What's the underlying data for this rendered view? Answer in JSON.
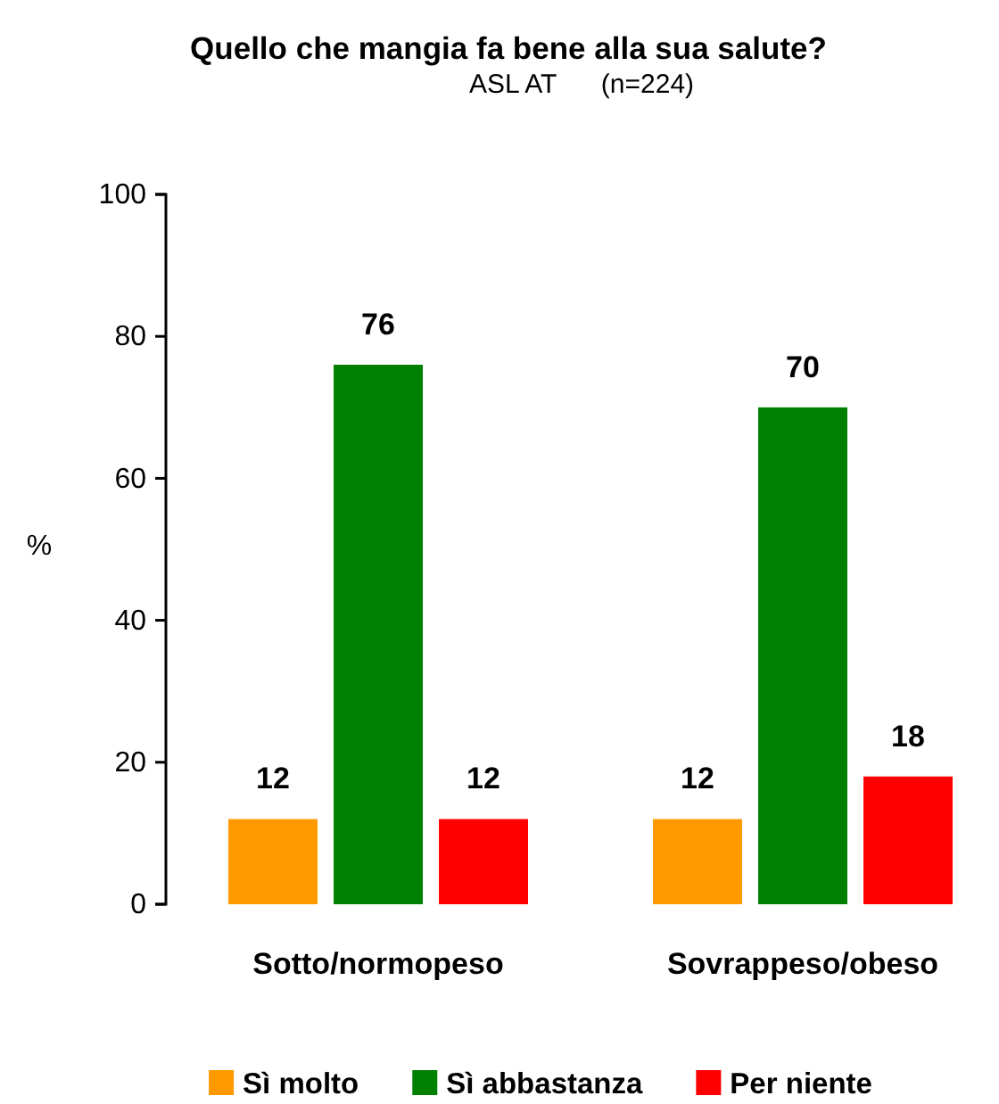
{
  "chart_data": {
    "type": "bar",
    "title": "Quello che mangia fa bene alla sua salute?",
    "subtitle": "ASL AT      (n=224)",
    "ylabel": "%",
    "categories": [
      "Sotto/normopeso",
      "Sovrappeso/obeso"
    ],
    "series": [
      {
        "name": "Sì molto",
        "color": "#ff9900",
        "values": [
          12,
          12
        ]
      },
      {
        "name": "Sì abbastanza",
        "color": "#008000",
        "values": [
          76,
          70
        ]
      },
      {
        "name": "Per niente",
        "color": "#ff0000",
        "values": [
          12,
          18
        ]
      }
    ],
    "ylim": [
      0,
      100
    ],
    "yticks": [
      0,
      20,
      40,
      60,
      80,
      100
    ],
    "data_labels": true,
    "legend": "bottom"
  }
}
